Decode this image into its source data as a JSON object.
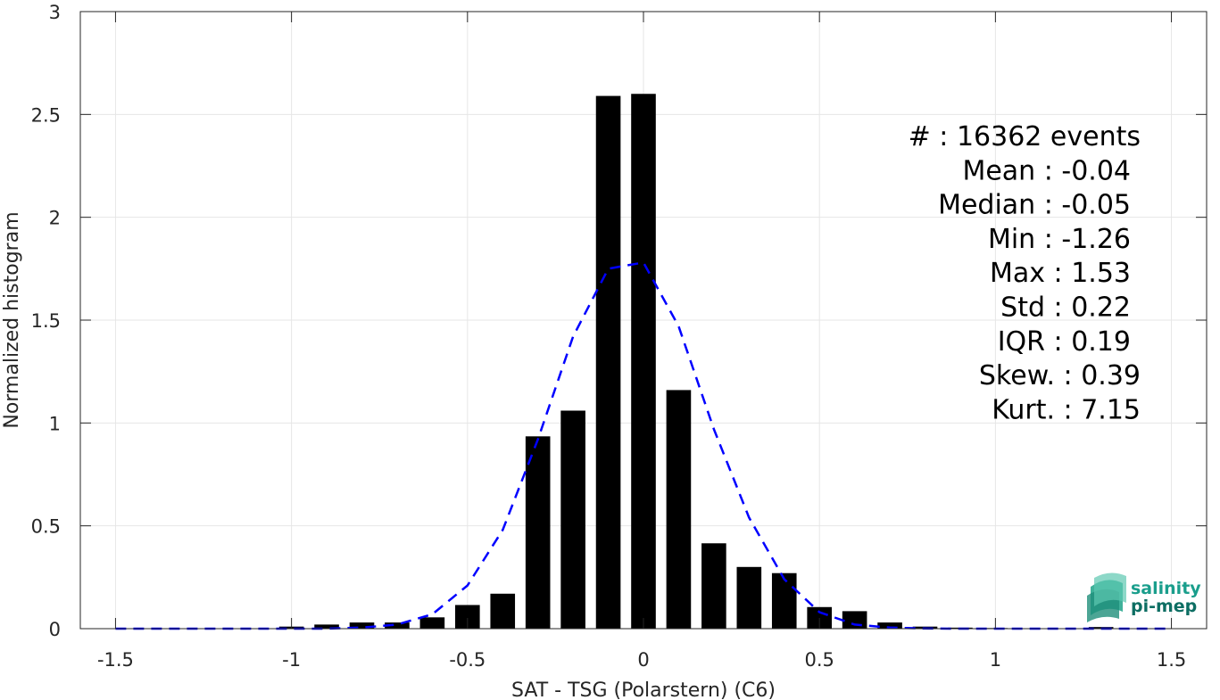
{
  "chart_data": {
    "type": "bar",
    "xlabel": "SAT - TSG (Polarstern) (C6)",
    "ylabel": "Normalized histogram",
    "xlim": [
      -1.6,
      1.6
    ],
    "ylim": [
      0,
      3
    ],
    "grid": true,
    "xticks": [
      -1.5,
      -1,
      -0.5,
      0,
      0.5,
      1,
      1.5
    ],
    "xtick_labels": [
      "-1.5",
      "-1",
      "-0.5",
      "0",
      "0.5",
      "1",
      "1.5"
    ],
    "yticks": [
      0,
      0.5,
      1,
      1.5,
      2,
      2.5,
      3
    ],
    "ytick_labels": [
      "0",
      "0.5",
      "1",
      "1.5",
      "2",
      "2.5",
      "3"
    ],
    "bar_width": 0.07,
    "bars": {
      "x": [
        -1.5,
        -1.4,
        -1.3,
        -1.2,
        -1.1,
        -1.0,
        -0.9,
        -0.8,
        -0.7,
        -0.6,
        -0.5,
        -0.4,
        -0.3,
        -0.2,
        -0.1,
        0.0,
        0.1,
        0.2,
        0.3,
        0.4,
        0.5,
        0.6,
        0.7,
        0.8,
        0.9,
        1.0,
        1.1,
        1.2,
        1.3,
        1.4,
        1.5
      ],
      "values": [
        0,
        0,
        0,
        0,
        0.002,
        0.01,
        0.02,
        0.03,
        0.03,
        0.055,
        0.115,
        0.17,
        0.935,
        1.06,
        2.59,
        2.6,
        1.16,
        0.415,
        0.3,
        0.27,
        0.105,
        0.085,
        0.03,
        0.01,
        0.005,
        0.003,
        0.002,
        0.002,
        0.008,
        0.002,
        0.002
      ]
    },
    "fit_curve": {
      "style": "dashed",
      "color": "#0000ff",
      "x": [
        -1.5,
        -1.4,
        -1.3,
        -1.2,
        -1.1,
        -1.0,
        -0.9,
        -0.8,
        -0.7,
        -0.6,
        -0.5,
        -0.4,
        -0.3,
        -0.2,
        -0.1,
        0.0,
        0.1,
        0.2,
        0.3,
        0.4,
        0.5,
        0.6,
        0.7,
        0.8,
        0.9,
        1.0,
        1.1,
        1.2,
        1.3,
        1.4,
        1.5
      ],
      "y": [
        0,
        0,
        0,
        0,
        0,
        0,
        0,
        0.005,
        0.02,
        0.07,
        0.21,
        0.48,
        0.92,
        1.42,
        1.75,
        1.78,
        1.47,
        0.97,
        0.54,
        0.24,
        0.08,
        0.02,
        0.005,
        0.001,
        0,
        0,
        0,
        0,
        0,
        0,
        0
      ]
    },
    "stats": [
      "#  : 16362 events",
      "Mean : -0.04",
      "Median : -0.05",
      "Min : -1.26",
      "Max : 1.53",
      "Std : 0.22",
      "IQR : 0.19",
      "Skew. : 0.39",
      "Kurt. : 7.15"
    ],
    "colors": {
      "bars": "#000000",
      "grid": "#e6e6e6",
      "axis": "#262626",
      "logo_primary": "#1a9e8c",
      "logo_secondary": "#0d6e63"
    }
  },
  "logo": {
    "line1": "salinity",
    "line2": "pi-mep"
  }
}
